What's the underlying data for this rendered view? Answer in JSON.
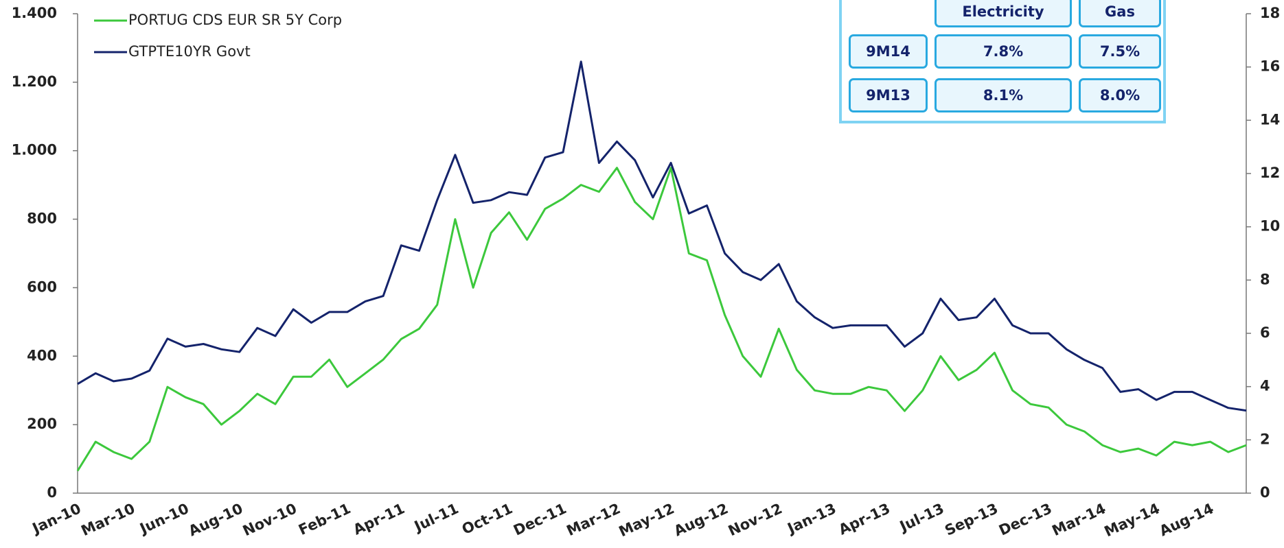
{
  "chart_data": {
    "type": "line",
    "categories": [
      "Jan-10",
      null,
      null,
      "Mar-10",
      null,
      null,
      "Jun-10",
      null,
      null,
      "Aug-10",
      null,
      null,
      "Nov-10",
      null,
      null,
      "Feb-11",
      null,
      null,
      "Apr-11",
      null,
      null,
      "Jul-11",
      null,
      null,
      "Oct-11",
      null,
      null,
      "Dec-11",
      null,
      null,
      "Mar-12",
      null,
      null,
      "May-12",
      null,
      null,
      "Aug-12",
      null,
      null,
      "Nov-12",
      null,
      null,
      "Jan-13",
      null,
      null,
      "Apr-13",
      null,
      null,
      "Jul-13",
      null,
      null,
      "Sep-13",
      null,
      null,
      "Dec-13",
      null,
      null,
      "Mar-14",
      null,
      null,
      "May-14",
      null,
      null,
      "Aug-14",
      null,
      null
    ],
    "series": [
      {
        "name": "PORTUG CDS EUR SR 5Y Corp",
        "color": "#3cc83c",
        "values": [
          65,
          150,
          120,
          100,
          150,
          310,
          280,
          260,
          200,
          240,
          290,
          260,
          340,
          340,
          390,
          310,
          350,
          390,
          450,
          480,
          550,
          800,
          600,
          760,
          820,
          740,
          830,
          860,
          900,
          880,
          950,
          850,
          800,
          950,
          700,
          680,
          520,
          400,
          340,
          480,
          360,
          300,
          290,
          290,
          310,
          300,
          240,
          300,
          400,
          330,
          360,
          410,
          300,
          260,
          250,
          200,
          180,
          140,
          120,
          130,
          110,
          150,
          140,
          150,
          120,
          140
        ]
      },
      {
        "name": "GTPTE10YR Govt",
        "color": "#14236b",
        "axis": "y2",
        "values": [
          4.1,
          4.5,
          4.2,
          4.3,
          4.6,
          5.8,
          5.5,
          5.6,
          5.4,
          5.3,
          6.2,
          5.9,
          6.9,
          6.4,
          6.8,
          6.8,
          7.2,
          7.4,
          9.3,
          9.1,
          11.0,
          12.7,
          10.9,
          11.0,
          11.3,
          11.2,
          12.6,
          12.8,
          16.2,
          12.4,
          13.2,
          12.5,
          11.1,
          12.4,
          10.5,
          10.8,
          9.0,
          8.3,
          8.0,
          8.6,
          7.2,
          6.6,
          6.2,
          6.3,
          6.3,
          6.3,
          5.5,
          6.0,
          7.3,
          6.5,
          6.6,
          7.3,
          6.3,
          6.0,
          6.0,
          5.4,
          5.0,
          4.7,
          3.8,
          3.9,
          3.5,
          3.8,
          3.8,
          3.5,
          3.2,
          3.1
        ]
      }
    ],
    "ylim": [
      0,
      1400
    ],
    "yticks": [
      0,
      200,
      400,
      600,
      800,
      {
        "value": 1000,
        "label": "1.000"
      },
      {
        "value": 1200,
        "label": "1.200"
      },
      {
        "value": 1400,
        "label": "1.400"
      }
    ],
    "y2lim": [
      0,
      18
    ],
    "y2ticks": [
      0,
      2,
      4,
      6,
      8,
      10,
      12,
      14,
      16,
      18
    ],
    "legend": "top-left"
  },
  "table": {
    "header": [
      "Electricity",
      "Gas"
    ],
    "rows": [
      [
        "9M14",
        "7.8%",
        "7.5%"
      ],
      [
        "9M13",
        "8.1%",
        "8.0%"
      ]
    ]
  }
}
